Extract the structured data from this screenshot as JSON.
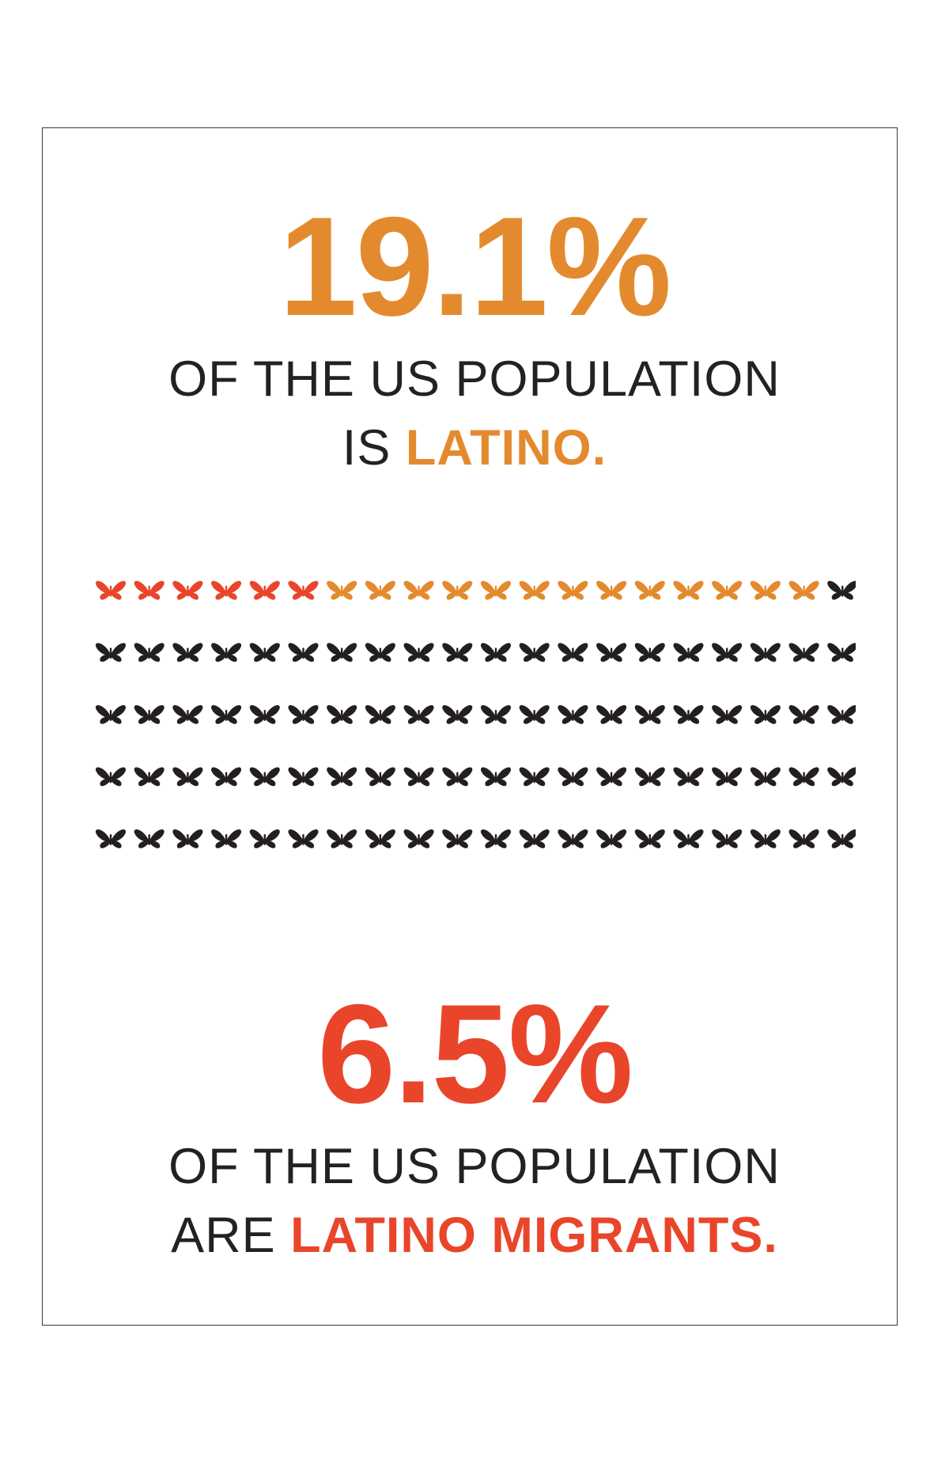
{
  "stat_latino": {
    "value": "19.1%",
    "line1": "OF THE US POPULATION",
    "line2_prefix": "IS",
    "line2_highlight": "LATINO."
  },
  "stat_migrants": {
    "value": "6.5%",
    "line1": "OF THE US POPULATION",
    "line2_prefix": "ARE",
    "line2_highlight": "LATINO MIGRANTS."
  },
  "chart_data": {
    "type": "pictogram",
    "icon": "butterfly-icon",
    "rows": 5,
    "columns": 20,
    "total": 100,
    "groups": [
      {
        "count": 6,
        "color": "#E9452B"
      },
      {
        "count": 13,
        "color": "#E48A2E"
      },
      {
        "count": 81,
        "color": "#231F20"
      }
    ]
  },
  "colors": {
    "orange": "#E48A2E",
    "red": "#E9452B",
    "dark": "#231F20",
    "text": "#222222"
  }
}
